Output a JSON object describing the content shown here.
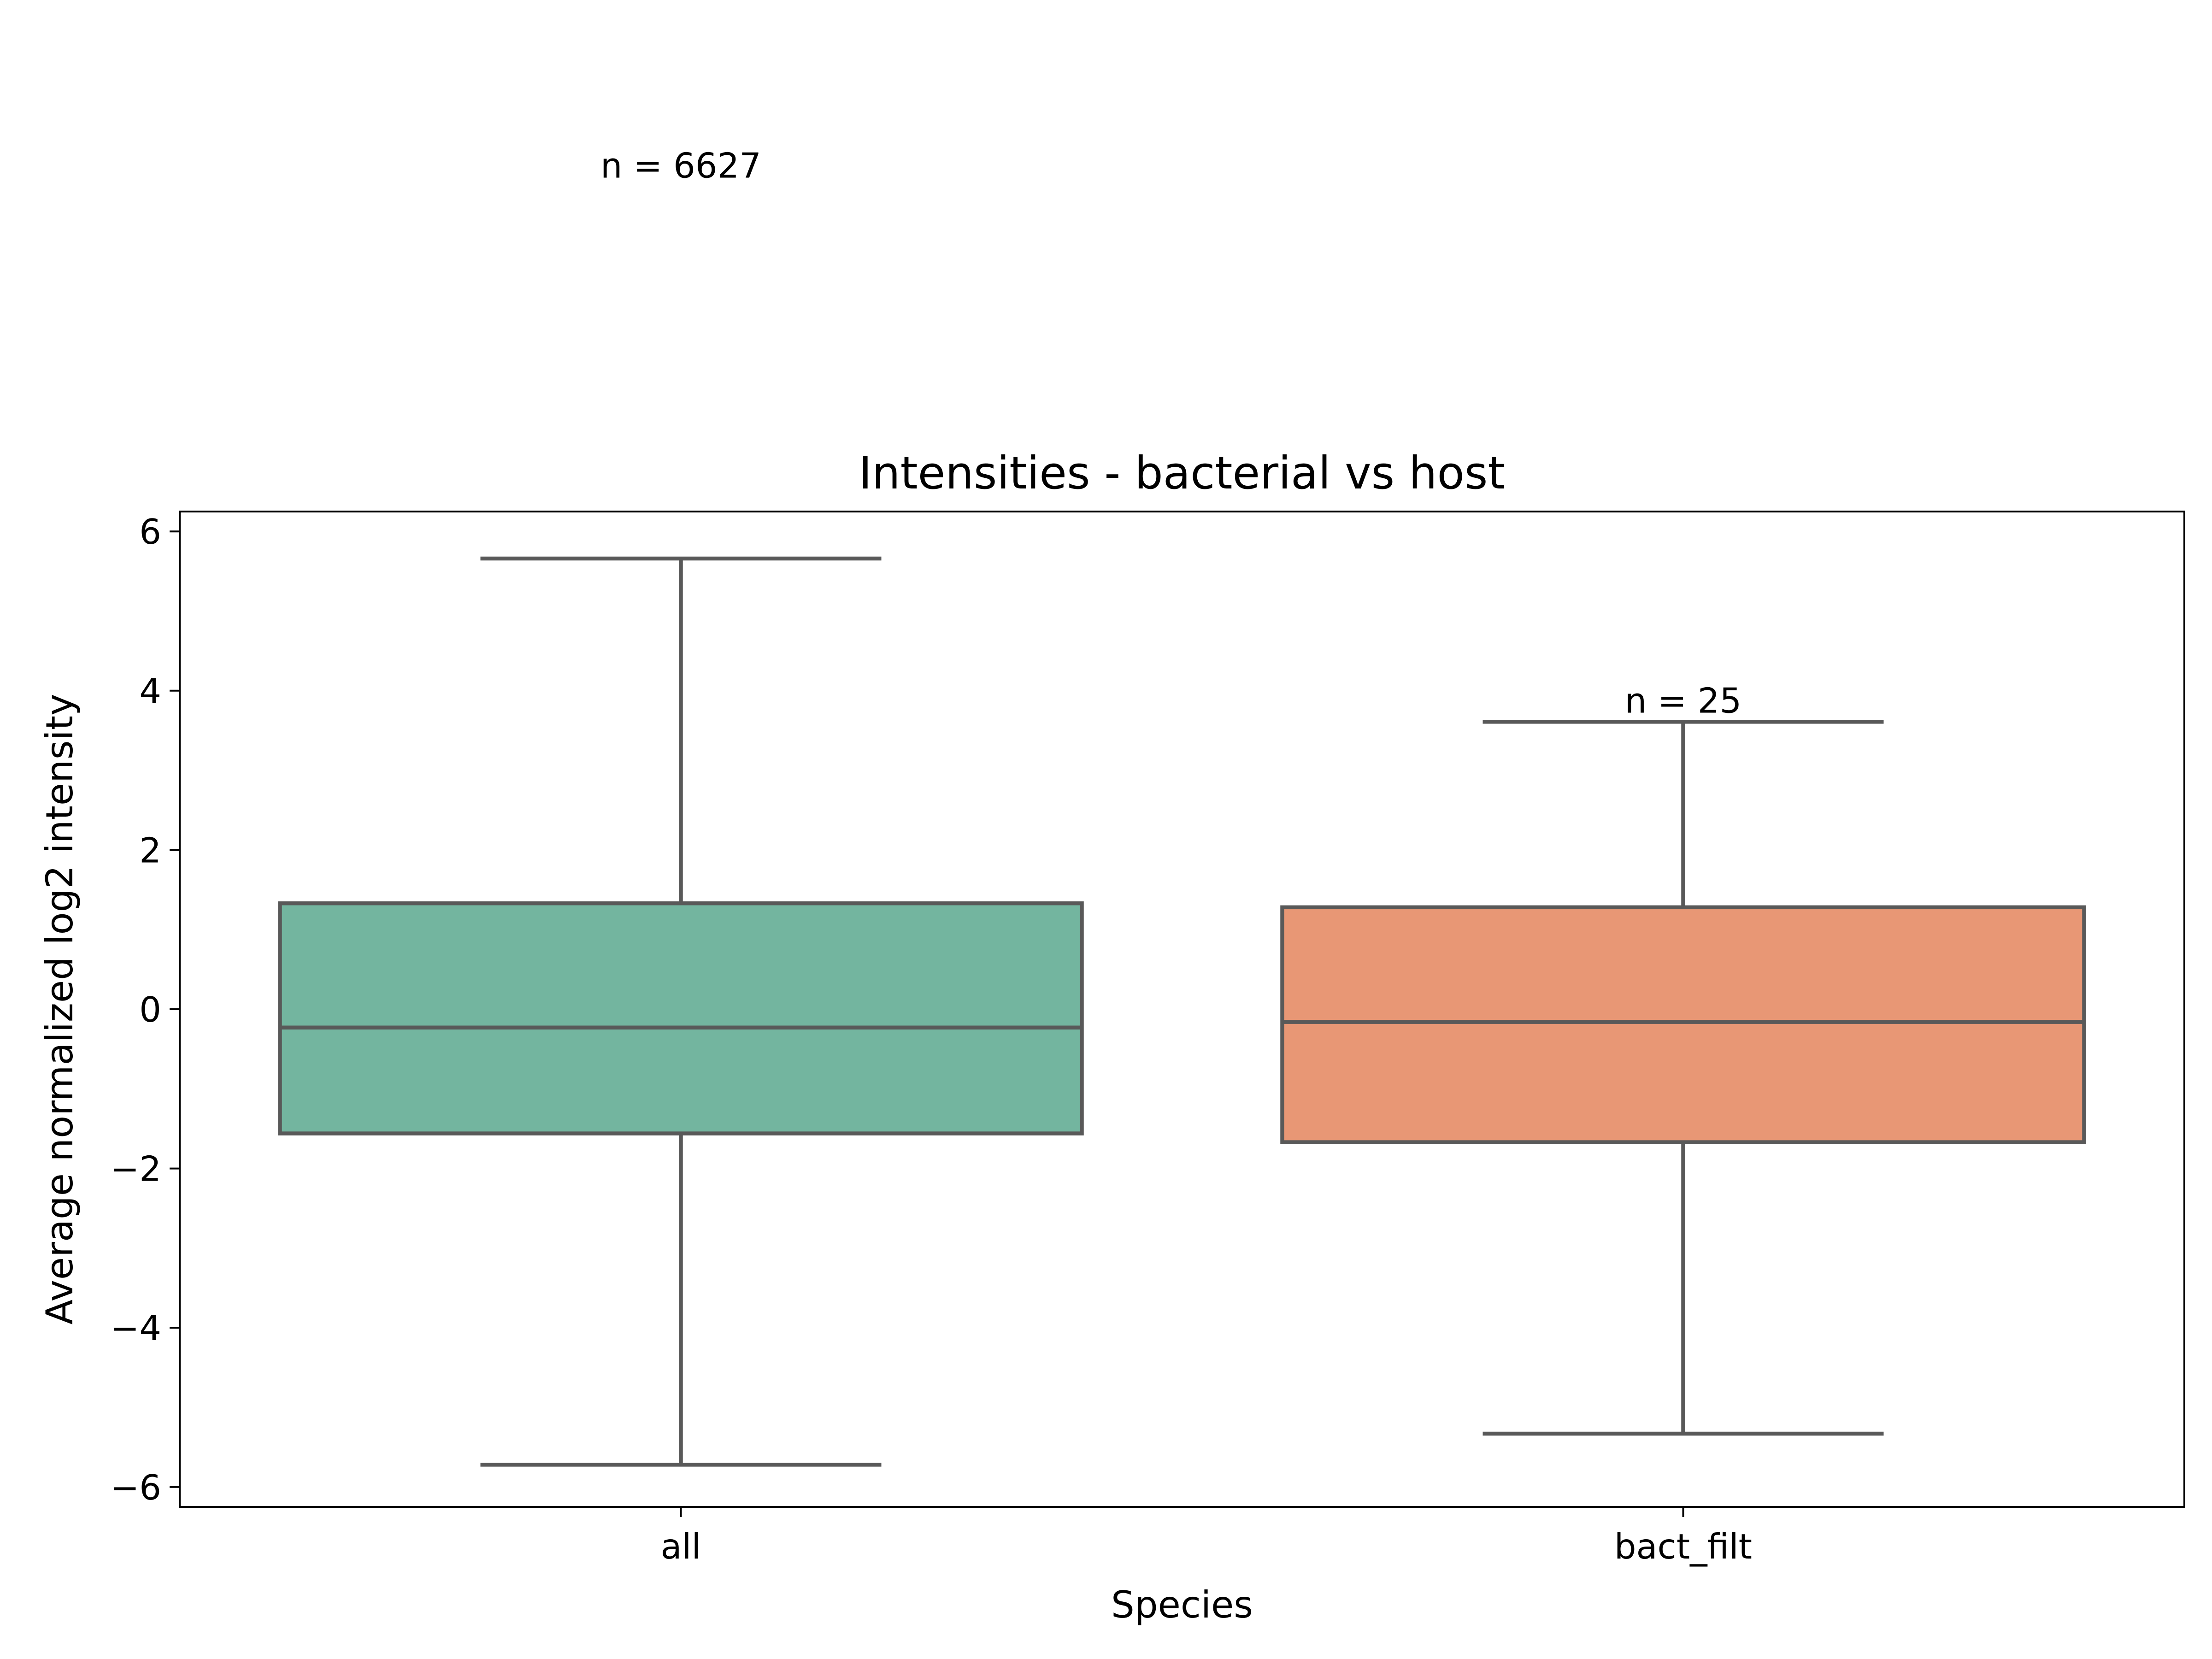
{
  "chart_data": {
    "type": "box",
    "title": "Intensities - bacterial vs host",
    "xlabel": "Species",
    "ylabel": "Average normalized log2 intensity",
    "categories": [
      "all",
      "bact_filt"
    ],
    "ylim": [
      -6.25,
      6.25
    ],
    "yticks": [
      -6,
      -4,
      -2,
      0,
      2,
      4,
      6
    ],
    "ytick_labels": [
      "−6",
      "−4",
      "−2",
      "0",
      "2",
      "4",
      "6"
    ],
    "boxes": [
      {
        "category": "all",
        "whisker_low": -5.72,
        "q1": -1.56,
        "median": -0.23,
        "q3": 1.33,
        "whisker_high": 5.66,
        "color": "#73b59f"
      },
      {
        "category": "bact_filt",
        "whisker_low": -5.33,
        "q1": -1.67,
        "median": -0.16,
        "q3": 1.28,
        "whisker_high": 3.61,
        "color": "#e89775"
      }
    ],
    "annotations": [
      {
        "text": "n = 6627",
        "x": "all",
        "y": 10.6
      },
      {
        "text": "n = 25",
        "x": "bact_filt",
        "y": 3.88
      }
    ],
    "grid": false,
    "line_color": "#595959"
  }
}
